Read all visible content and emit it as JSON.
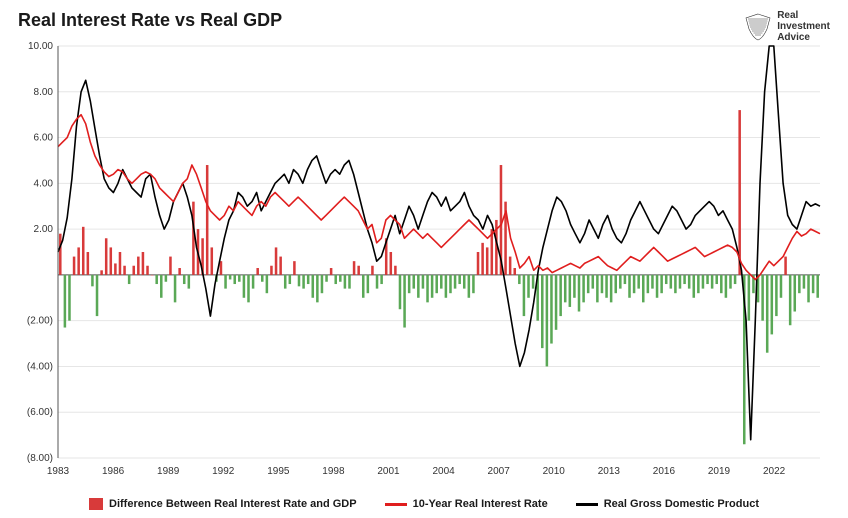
{
  "title": "Real Interest Rate vs Real GDP",
  "logo": {
    "line1": "Real",
    "line2": "Investment",
    "line3": "Advice"
  },
  "chart": {
    "type": "combo-bar-line",
    "background_color": "#ffffff",
    "grid_color": "#e6e6e6",
    "axis_color": "#555555",
    "tick_fontsize": 10,
    "tick_color": "#333333",
    "ylim": [
      -8,
      10
    ],
    "yticks": [
      -8,
      -6,
      -4,
      -2,
      0,
      2,
      4,
      6,
      8,
      10
    ],
    "ytick_labels": [
      "(8.00)",
      "(6.00)",
      "(4.00)",
      "(2.00)",
      "",
      "2.00",
      "4.00",
      "6.00",
      "8.00",
      "10.00"
    ],
    "x_start": 1983,
    "x_end": 2024.5,
    "xticks": [
      1983,
      1986,
      1989,
      1992,
      1995,
      1998,
      2001,
      2004,
      2007,
      2010,
      2013,
      2016,
      2019,
      2022
    ],
    "bar_pos_color": "#d83a3a",
    "bar_neg_color": "#5aa856",
    "line_red_color": "#e01e1e",
    "line_black_color": "#000000",
    "line_width": 1.6,
    "bars": [
      1.8,
      -2.3,
      -2.0,
      0.8,
      1.2,
      2.1,
      1.0,
      -0.5,
      -1.8,
      0.2,
      1.6,
      1.2,
      0.5,
      1.0,
      0.4,
      -0.4,
      0.4,
      0.8,
      1.0,
      0.4,
      0.0,
      -0.4,
      -1.0,
      -0.3,
      0.8,
      -1.2,
      0.3,
      -0.4,
      -0.6,
      3.2,
      2.0,
      1.6,
      4.8,
      1.2,
      -0.3,
      0.6,
      -0.6,
      -0.2,
      -0.4,
      -0.3,
      -1.0,
      -1.2,
      -0.6,
      0.3,
      -0.3,
      -0.8,
      0.4,
      1.2,
      0.8,
      -0.6,
      -0.4,
      0.6,
      -0.5,
      -0.6,
      -0.4,
      -1.0,
      -1.2,
      -0.8,
      -0.3,
      0.3,
      -0.4,
      -0.3,
      -0.6,
      -0.6,
      0.6,
      0.4,
      -1.0,
      -0.8,
      0.4,
      -0.6,
      -0.4,
      1.6,
      1.0,
      0.4,
      -1.5,
      -2.3,
      -0.8,
      -0.6,
      -1.0,
      -0.6,
      -1.2,
      -1.0,
      -0.8,
      -0.6,
      -1.0,
      -0.8,
      -0.6,
      -0.4,
      -0.6,
      -1.0,
      -0.8,
      1.0,
      1.4,
      1.2,
      2.0,
      2.4,
      4.8,
      3.2,
      0.8,
      0.3,
      -0.4,
      -1.8,
      -1.0,
      -0.6,
      -2.0,
      -3.2,
      -4.0,
      -3.0,
      -2.4,
      -1.8,
      -1.2,
      -1.4,
      -1.0,
      -1.6,
      -1.2,
      -0.8,
      -0.6,
      -1.2,
      -0.8,
      -1.0,
      -1.2,
      -0.8,
      -0.6,
      -0.4,
      -1.0,
      -0.8,
      -0.6,
      -1.2,
      -0.8,
      -0.6,
      -1.0,
      -0.8,
      -0.4,
      -0.6,
      -0.8,
      -0.6,
      -0.4,
      -0.6,
      -1.0,
      -0.8,
      -0.6,
      -0.4,
      -0.6,
      -0.4,
      -0.8,
      -1.0,
      -0.6,
      -0.4,
      7.2,
      -7.4,
      -2.0,
      -0.8,
      -1.2,
      -2.0,
      -3.4,
      -2.6,
      -1.8,
      -1.0,
      0.8,
      -2.2,
      -1.6,
      -0.8,
      -0.6,
      -1.2,
      -0.8,
      -1.0
    ],
    "line_red": [
      5.6,
      5.8,
      6.0,
      6.5,
      6.8,
      7.0,
      6.6,
      5.8,
      5.2,
      4.8,
      4.5,
      4.3,
      4.4,
      4.6,
      4.5,
      4.2,
      4.0,
      4.2,
      4.4,
      4.5,
      4.4,
      4.2,
      3.8,
      3.6,
      3.4,
      3.2,
      3.6,
      4.0,
      4.2,
      4.8,
      4.4,
      3.8,
      3.2,
      2.8,
      2.6,
      2.4,
      2.6,
      3.0,
      2.8,
      3.2,
      3.0,
      2.8,
      2.6,
      3.0,
      3.2,
      3.0,
      3.4,
      3.6,
      3.4,
      3.2,
      3.0,
      3.2,
      3.4,
      3.2,
      3.0,
      2.8,
      2.6,
      2.4,
      2.6,
      2.8,
      3.0,
      3.2,
      3.4,
      3.2,
      3.0,
      2.8,
      2.4,
      2.0,
      2.2,
      1.4,
      1.6,
      2.4,
      2.6,
      2.4,
      2.2,
      1.6,
      1.8,
      2.0,
      1.8,
      1.6,
      1.8,
      1.6,
      1.4,
      1.2,
      1.4,
      1.6,
      1.8,
      2.0,
      2.2,
      2.4,
      2.2,
      2.0,
      1.8,
      1.6,
      1.8,
      2.0,
      2.2,
      2.8,
      1.6,
      1.0,
      0.3,
      0.5,
      0.8,
      0.2,
      0.4,
      0.2,
      0.3,
      0.1,
      0.2,
      0.3,
      0.4,
      0.5,
      0.4,
      0.3,
      0.5,
      0.6,
      0.7,
      0.8,
      0.6,
      0.4,
      0.3,
      0.2,
      0.4,
      0.6,
      0.8,
      0.7,
      0.6,
      0.8,
      1.0,
      1.2,
      1.0,
      0.8,
      0.6,
      0.7,
      0.8,
      0.9,
      1.0,
      1.1,
      1.2,
      1.0,
      0.8,
      0.9,
      1.0,
      1.1,
      1.2,
      1.3,
      1.2,
      1.0,
      0.5,
      0.2,
      0.0,
      -0.2,
      0.0,
      0.3,
      0.6,
      0.4,
      0.6,
      0.8,
      1.2,
      1.6,
      1.9,
      1.7,
      1.8,
      2.0,
      1.9,
      1.8
    ],
    "line_black": [
      1.0,
      1.5,
      2.5,
      4.2,
      6.5,
      8.0,
      8.5,
      7.6,
      6.4,
      5.2,
      4.2,
      3.8,
      3.6,
      4.0,
      4.6,
      4.2,
      3.8,
      3.6,
      3.4,
      4.2,
      4.4,
      3.4,
      2.6,
      2.0,
      2.4,
      3.2,
      3.6,
      4.0,
      3.4,
      2.6,
      1.2,
      0.4,
      -0.6,
      -1.8,
      -0.4,
      0.6,
      1.6,
      2.4,
      2.8,
      3.6,
      3.4,
      3.0,
      3.2,
      3.6,
      2.8,
      3.2,
      3.6,
      4.0,
      4.2,
      4.4,
      4.0,
      4.6,
      4.4,
      4.0,
      4.6,
      5.0,
      5.2,
      4.6,
      4.0,
      4.4,
      4.6,
      4.4,
      4.8,
      5.0,
      4.4,
      3.6,
      2.8,
      2.0,
      1.4,
      0.6,
      0.8,
      1.4,
      2.0,
      2.6,
      1.8,
      2.4,
      3.0,
      2.6,
      2.0,
      2.6,
      3.2,
      3.6,
      3.4,
      3.0,
      3.4,
      2.8,
      3.0,
      3.2,
      3.6,
      3.0,
      2.6,
      2.4,
      2.0,
      2.6,
      2.2,
      1.4,
      0.6,
      -0.6,
      -1.8,
      -3.0,
      -4.0,
      -3.4,
      -2.4,
      -1.2,
      0.2,
      1.2,
      2.0,
      2.8,
      3.4,
      3.2,
      2.8,
      2.2,
      1.8,
      1.4,
      1.8,
      2.4,
      2.0,
      1.6,
      2.2,
      2.6,
      2.0,
      1.6,
      1.4,
      1.8,
      2.4,
      2.8,
      3.2,
      2.8,
      2.4,
      2.0,
      1.8,
      2.2,
      2.6,
      3.0,
      2.8,
      2.4,
      2.0,
      2.2,
      2.6,
      2.8,
      3.0,
      3.2,
      3.0,
      2.6,
      2.8,
      2.4,
      2.0,
      1.2,
      0.2,
      -2.0,
      -7.2,
      -2.0,
      4.0,
      8.0,
      12.0,
      11.0,
      7.0,
      4.0,
      2.6,
      2.2,
      2.0,
      2.6,
      3.2,
      3.0,
      3.1,
      3.0
    ]
  },
  "legend": {
    "bar_label": "Difference Between Real Interest Rate and GDP",
    "line_red_label": "10-Year Real Interest Rate",
    "line_black_label": "Real Gross Domestic Product"
  }
}
